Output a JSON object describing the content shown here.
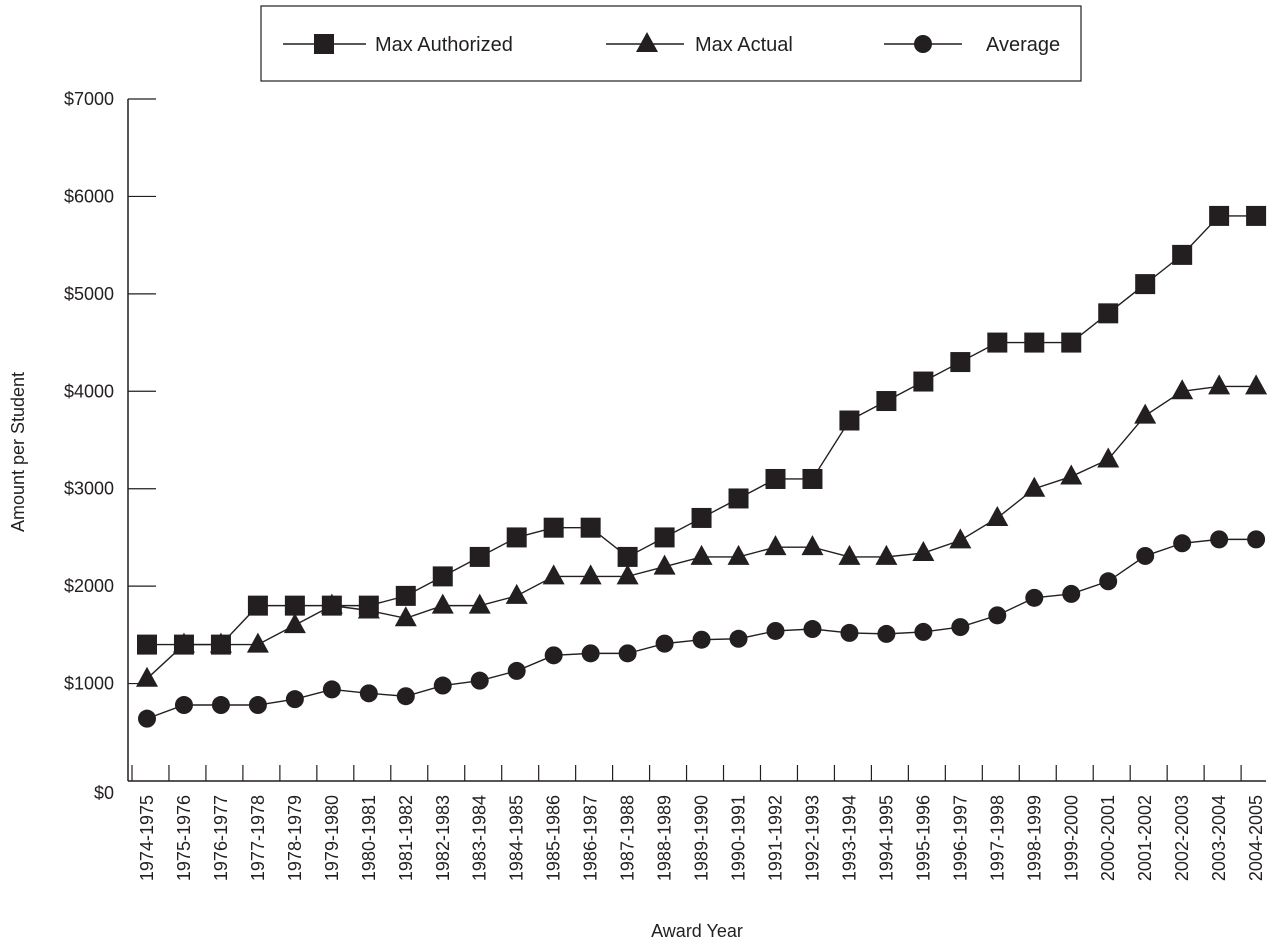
{
  "chart_data": {
    "type": "line",
    "title": "",
    "xlabel": "Award Year",
    "ylabel": "Amount per Student",
    "ylim": [
      0,
      7000
    ],
    "grid": false,
    "legend_position": "top",
    "y_ticks": [
      0,
      1000,
      2000,
      3000,
      4000,
      5000,
      6000,
      7000
    ],
    "y_tick_labels": [
      "$0",
      "$1000",
      "$2000",
      "$3000",
      "$4000",
      "$5000",
      "$6000",
      "$7000"
    ],
    "categories": [
      "1974-1975",
      "1975-1976",
      "1976-1977",
      "1977-1978",
      "1978-1979",
      "1979-1980",
      "1980-1981",
      "1981-1982",
      "1982-1983",
      "1983-1984",
      "1984-1985",
      "1985-1986",
      "1986-1987",
      "1987-1988",
      "1988-1989",
      "1989-1990",
      "1990-1991",
      "1991-1992",
      "1992-1993",
      "1993-1994",
      "1994-1995",
      "1995-1996",
      "1996-1997",
      "1997-1998",
      "1998-1999",
      "1999-2000",
      "2000-2001",
      "2001-2002",
      "2002-2003",
      "2003-2004",
      "2004-2005"
    ],
    "series": [
      {
        "name": "Max Authorized",
        "marker": "square",
        "values": [
          1400,
          1400,
          1400,
          1800,
          1800,
          1800,
          1800,
          1900,
          2100,
          2300,
          2500,
          2600,
          2600,
          2300,
          2500,
          2700,
          2900,
          3100,
          3100,
          3700,
          3900,
          4100,
          4300,
          4500,
          4500,
          4500,
          4800,
          5100,
          5400,
          5800,
          5800
        ]
      },
      {
        "name": "Max Actual",
        "marker": "triangle",
        "values": [
          1050,
          1400,
          1400,
          1400,
          1600,
          1800,
          1750,
          1670,
          1800,
          1800,
          1900,
          2100,
          2100,
          2100,
          2200,
          2300,
          2300,
          2400,
          2400,
          2300,
          2300,
          2340,
          2470,
          2700,
          3000,
          3125,
          3300,
          3750,
          4000,
          4050,
          4050
        ]
      },
      {
        "name": "Average",
        "marker": "circle",
        "values": [
          640,
          780,
          780,
          780,
          840,
          940,
          900,
          870,
          980,
          1030,
          1130,
          1290,
          1310,
          1310,
          1410,
          1450,
          1460,
          1540,
          1560,
          1520,
          1510,
          1530,
          1580,
          1700,
          1880,
          1920,
          2050,
          2310,
          2440,
          2480,
          2480
        ]
      }
    ]
  }
}
